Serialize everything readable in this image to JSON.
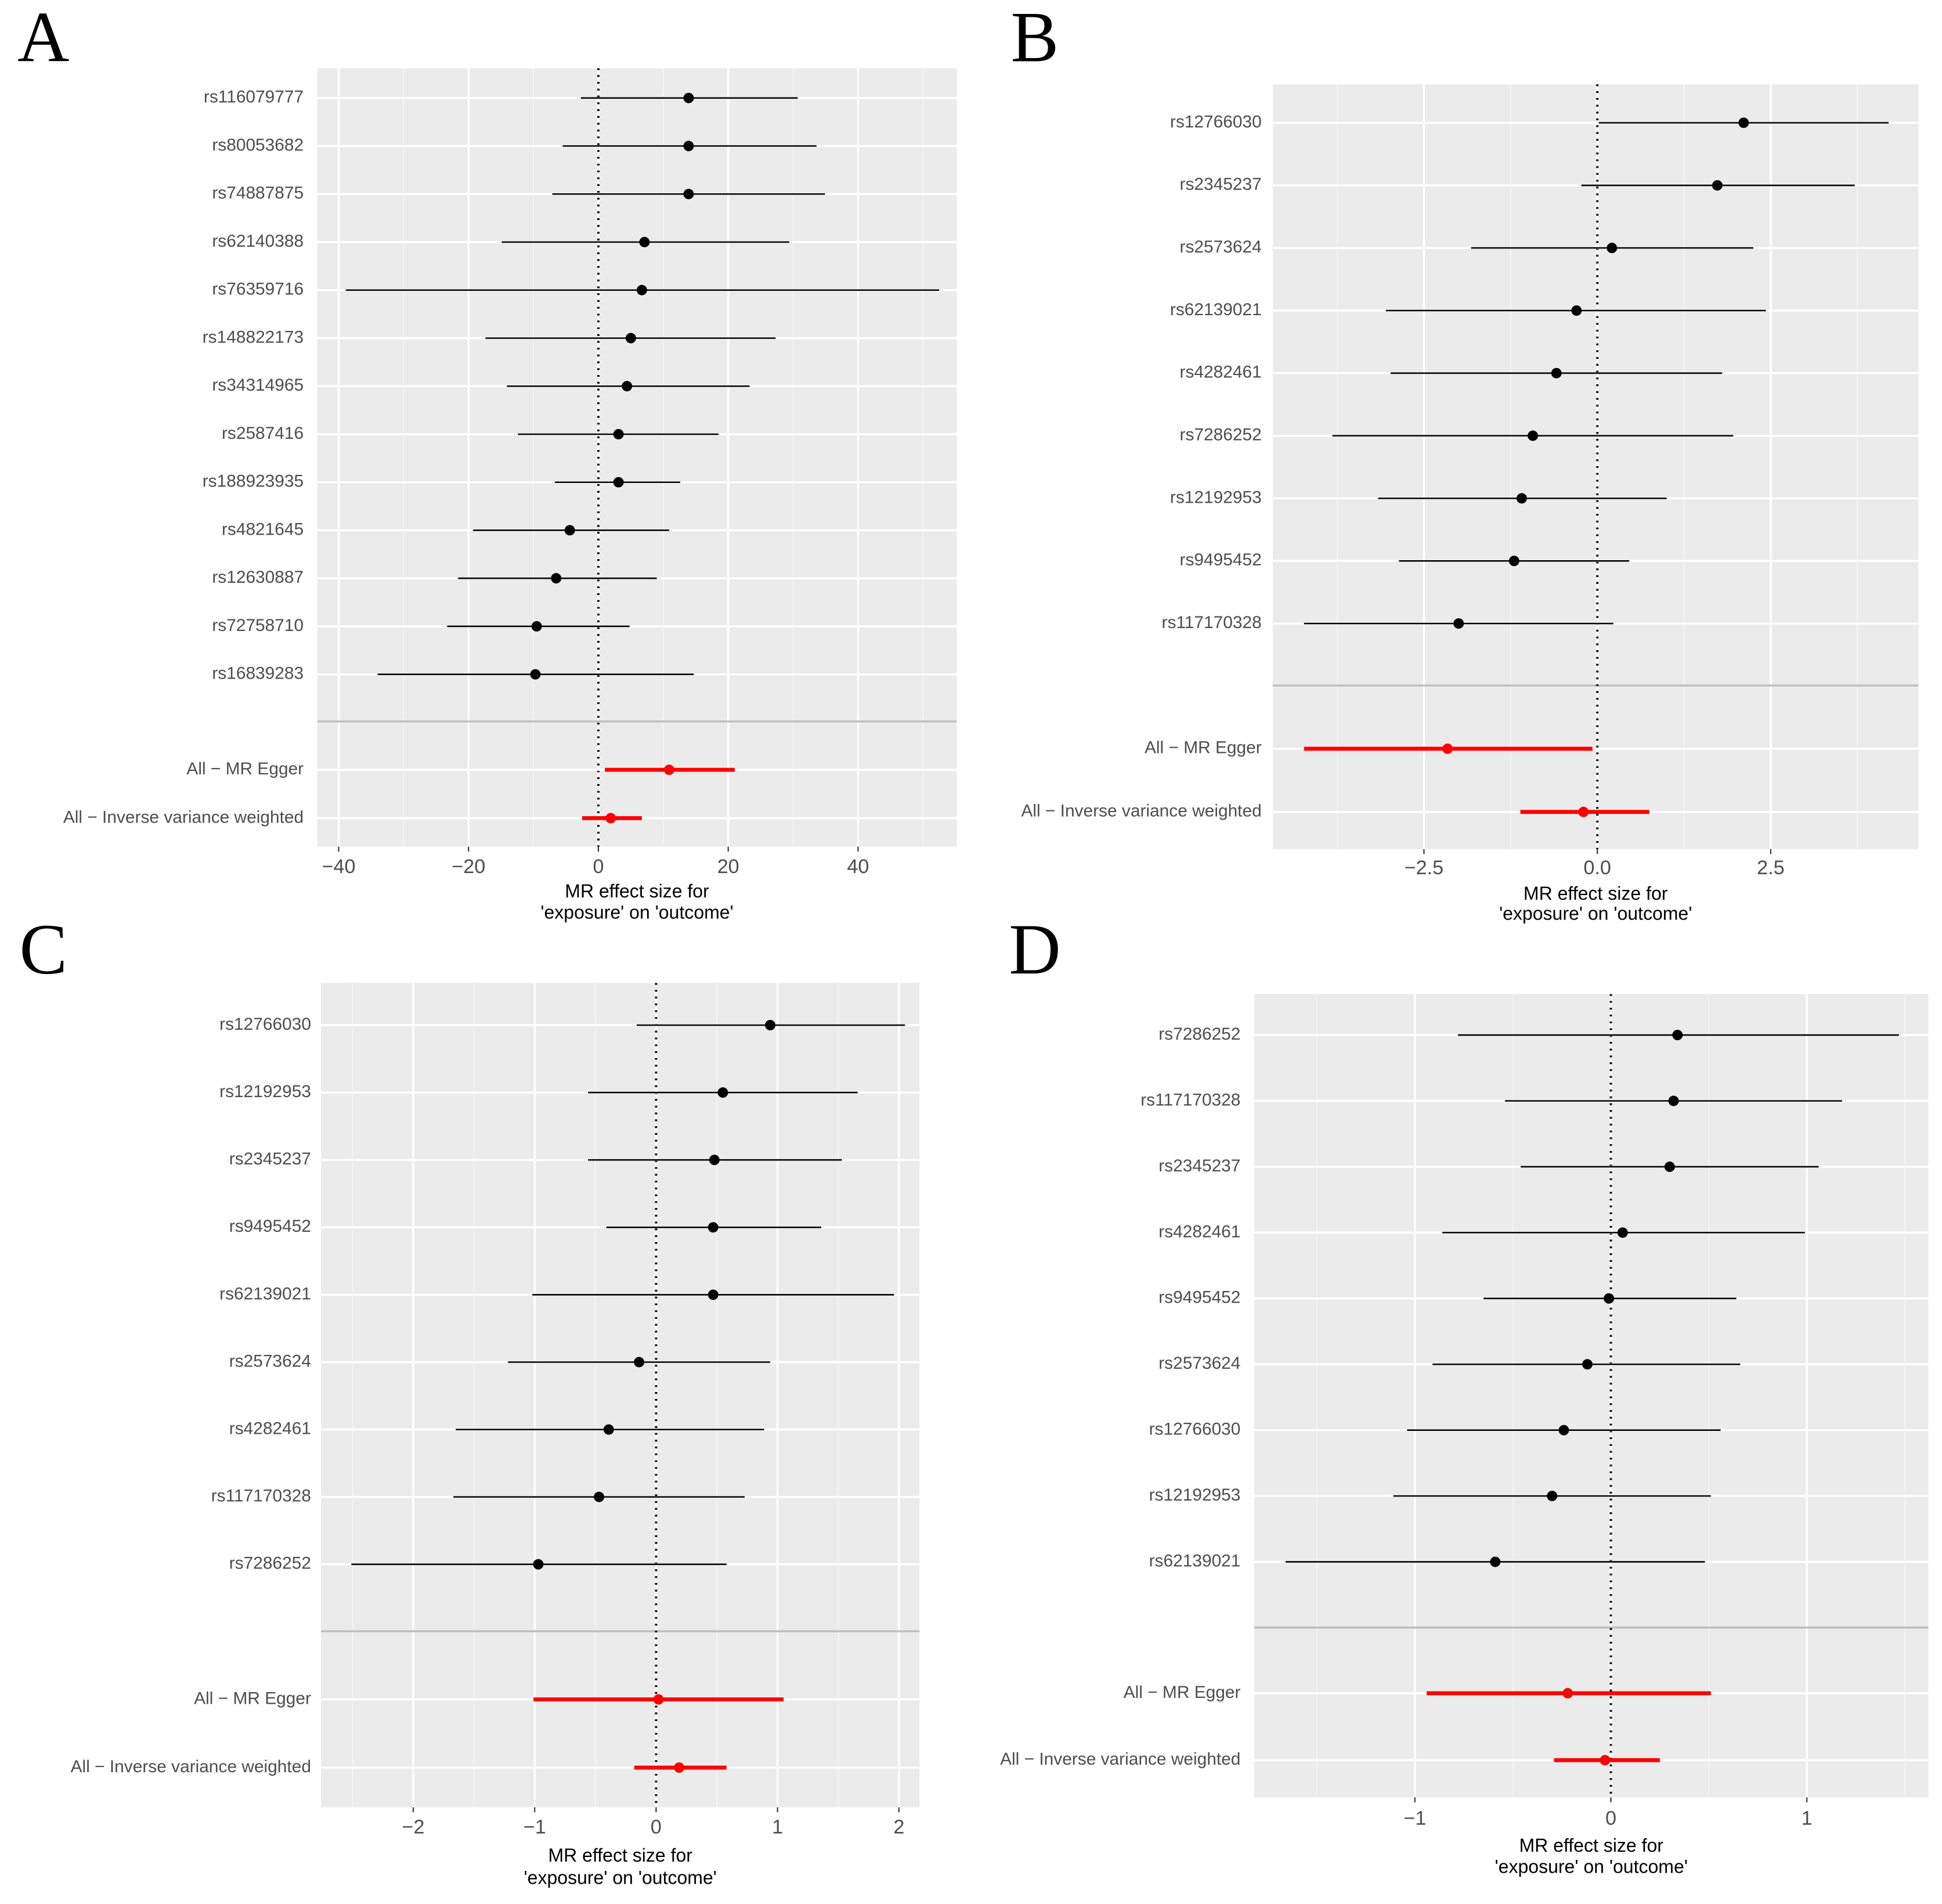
{
  "chart_data": [
    {
      "type": "forest",
      "panel": "A",
      "categories": [
        "rs116079777",
        "rs80053682",
        "rs74887875",
        "rs62140388",
        "rs76359716",
        "rs148822173",
        "rs34314965",
        "rs2587416",
        "rs188923935",
        "rs4821645",
        "rs12630887",
        "rs72758710",
        "rs16839283"
      ],
      "values": [
        13.9,
        13.9,
        13.9,
        7.1,
        6.7,
        5.0,
        4.4,
        3.1,
        3.1,
        -4.4,
        -6.5,
        -9.5,
        -9.7
      ],
      "lower": [
        -2.7,
        -5.5,
        -7.1,
        -14.9,
        -38.9,
        -17.4,
        -14.1,
        -12.4,
        -6.7,
        -19.3,
        -21.6,
        -23.3,
        -34.0
      ],
      "upper": [
        30.7,
        33.6,
        34.9,
        29.4,
        52.5,
        27.3,
        23.3,
        18.5,
        12.6,
        10.9,
        9.0,
        4.8,
        14.7
      ],
      "color": "#000000",
      "summary": {
        "categories": [
          "All − MR Egger",
          "All − Inverse variance weighted"
        ],
        "values": [
          10.9,
          1.9
        ],
        "lower": [
          1.0,
          -2.5
        ],
        "upper": [
          21.0,
          6.7
        ],
        "color": "#ff0000"
      },
      "xlim": [
        -43.3,
        55.2
      ],
      "xticks": [
        {
          "value": -40,
          "label": "−40"
        },
        {
          "value": -20,
          "label": "−20"
        },
        0,
        20,
        40
      ],
      "vline": 0,
      "xlabel": [
        "MR effect size for",
        "'exposure' on 'outcome'"
      ]
    },
    {
      "type": "forest",
      "panel": "B",
      "categories": [
        "rs12766030",
        "rs2345237",
        "rs2573624",
        "rs62139021",
        "rs4282461",
        "rs7286252",
        "rs12192953",
        "rs9495452",
        "rs117170328"
      ],
      "values": [
        2.11,
        1.73,
        0.21,
        -0.3,
        -0.59,
        -0.93,
        -1.09,
        -1.2,
        -2.0
      ],
      "lower": [
        0.02,
        -0.23,
        -1.82,
        -3.05,
        -2.98,
        -3.82,
        -3.16,
        -2.86,
        -4.23
      ],
      "upper": [
        4.2,
        3.71,
        2.25,
        2.43,
        1.8,
        1.96,
        1.0,
        0.46,
        0.23
      ],
      "color": "#000000",
      "summary": {
        "categories": [
          "All − MR Egger",
          "All − Inverse variance weighted"
        ],
        "values": [
          -2.16,
          -0.2
        ],
        "lower": [
          -4.23,
          -1.11
        ],
        "upper": [
          -0.07,
          0.75
        ],
        "color": "#ff0000"
      },
      "xlim": [
        -4.68,
        4.63
      ],
      "xticks": [
        {
          "value": -2.5,
          "label": "−2.5"
        },
        {
          "value": 0,
          "label": "0.0"
        },
        2.5
      ],
      "vline": 0,
      "xlabel": [
        "MR effect size for",
        "'exposure' on 'outcome'"
      ]
    },
    {
      "type": "forest",
      "panel": "C",
      "categories": [
        "rs12766030",
        "rs12192953",
        "rs2345237",
        "rs9495452",
        "rs62139021",
        "rs2573624",
        "rs4282461",
        "rs117170328",
        "rs7286252"
      ],
      "values": [
        0.94,
        0.55,
        0.48,
        0.47,
        0.47,
        -0.14,
        -0.39,
        -0.47,
        -0.97
      ],
      "lower": [
        -0.16,
        -0.56,
        -0.56,
        -0.41,
        -1.02,
        -1.22,
        -1.65,
        -1.67,
        -2.51
      ],
      "upper": [
        2.05,
        1.66,
        1.53,
        1.36,
        1.96,
        0.94,
        0.89,
        0.73,
        0.58
      ],
      "color": "#000000",
      "summary": {
        "categories": [
          "All − MR Egger",
          "All − Inverse variance weighted"
        ],
        "values": [
          0.02,
          0.19
        ],
        "lower": [
          -1.01,
          -0.18
        ],
        "upper": [
          1.05,
          0.58
        ],
        "color": "#ff0000"
      },
      "xlim": [
        -2.76,
        2.17
      ],
      "xticks": [
        {
          "value": -2,
          "label": "−2"
        },
        {
          "value": -1,
          "label": "−1"
        },
        0,
        1,
        2
      ],
      "vline": 0,
      "xlabel": [
        "MR effect size for",
        "'exposure' on 'outcome'"
      ]
    },
    {
      "type": "forest",
      "panel": "D",
      "categories": [
        "rs7286252",
        "rs117170328",
        "rs2345237",
        "rs4282461",
        "rs9495452",
        "rs2573624",
        "rs12766030",
        "rs12192953",
        "rs62139021"
      ],
      "values": [
        0.34,
        0.32,
        0.3,
        0.06,
        -0.01,
        -0.12,
        -0.24,
        -0.3,
        -0.59
      ],
      "lower": [
        -0.78,
        -0.54,
        -0.46,
        -0.86,
        -0.65,
        -0.91,
        -1.04,
        -1.11,
        -1.66
      ],
      "upper": [
        1.47,
        1.18,
        1.06,
        0.99,
        0.64,
        0.66,
        0.56,
        0.51,
        0.48
      ],
      "color": "#000000",
      "summary": {
        "categories": [
          "All − MR Egger",
          "All − Inverse variance weighted"
        ],
        "values": [
          -0.22,
          -0.03
        ],
        "lower": [
          -0.94,
          -0.29
        ],
        "upper": [
          0.51,
          0.25
        ],
        "color": "#ff0000"
      },
      "xlim": [
        -1.82,
        1.62
      ],
      "xticks": [
        {
          "value": -1,
          "label": "−1"
        },
        0,
        1
      ],
      "vline": 0,
      "xlabel": [
        "MR effect size for",
        "'exposure' on 'outcome'"
      ]
    }
  ]
}
